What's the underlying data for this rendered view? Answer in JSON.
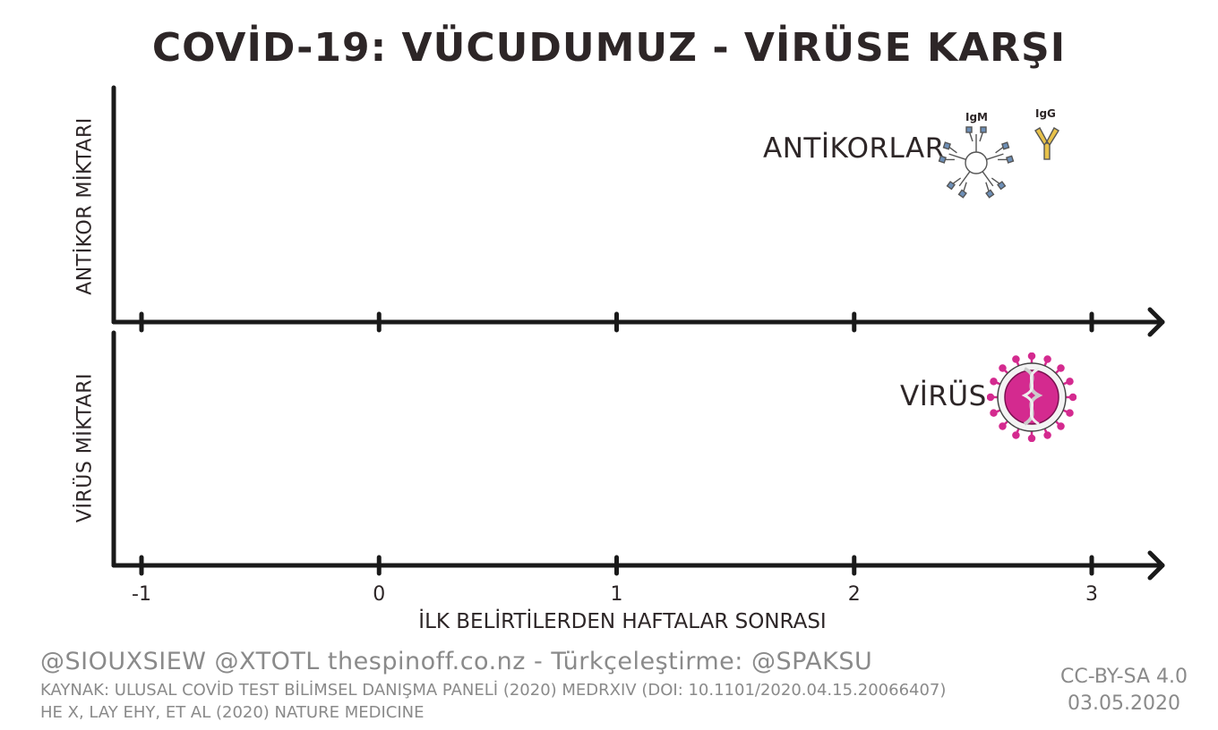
{
  "title": "COVİD-19: VÜCUDUMUZ - VİRÜSE KARŞI",
  "chart_data": [
    {
      "type": "line",
      "panel": "antibodies",
      "ylabel": "ANTİKOR MİKTARI",
      "xlabel": "",
      "x_ticks": [
        "-1",
        "0",
        "1",
        "2",
        "3"
      ],
      "xlim": [
        -1,
        3
      ],
      "series": [],
      "legend": {
        "label": "ANTİKORLAR",
        "placement": "top-right",
        "items": [
          "IgM",
          "IgG"
        ]
      }
    },
    {
      "type": "line",
      "panel": "virus",
      "ylabel": "VİRÜS MİKTARI",
      "xlabel": "İLK BELİRTİLERDEN HAFTALAR SONRASI",
      "x_ticks": [
        "-1",
        "0",
        "1",
        "2",
        "3"
      ],
      "xlim": [
        -1,
        3
      ],
      "series": [],
      "legend": {
        "label": "VİRÜS",
        "placement": "top-right"
      }
    }
  ],
  "credits": "@SIOUXSIEW @XTOTL thespinoff.co.nz - Türkçeleştirme: @SPAKSU",
  "source_line1": "KAYNAK: ULUSAL COVİD TEST BİLİMSEL DANIŞMA PANELİ (2020) MEDRXIV (DOI: 10.1101/2020.04.15.20066407)",
  "source_line2": "HE X, LAY EHY, ET AL (2020) NATURE MEDICINE",
  "license": "CC-BY-SA 4.0",
  "date": "03.05.2020",
  "colors": {
    "axis": "#1a1a1a",
    "virus": "#d42a8f",
    "igm": "#6d8fb7",
    "igg": "#c9a22a",
    "footer": "#8a8a8a"
  },
  "icons": [
    "igm-antibody-icon",
    "igg-antibody-icon",
    "virus-icon"
  ]
}
